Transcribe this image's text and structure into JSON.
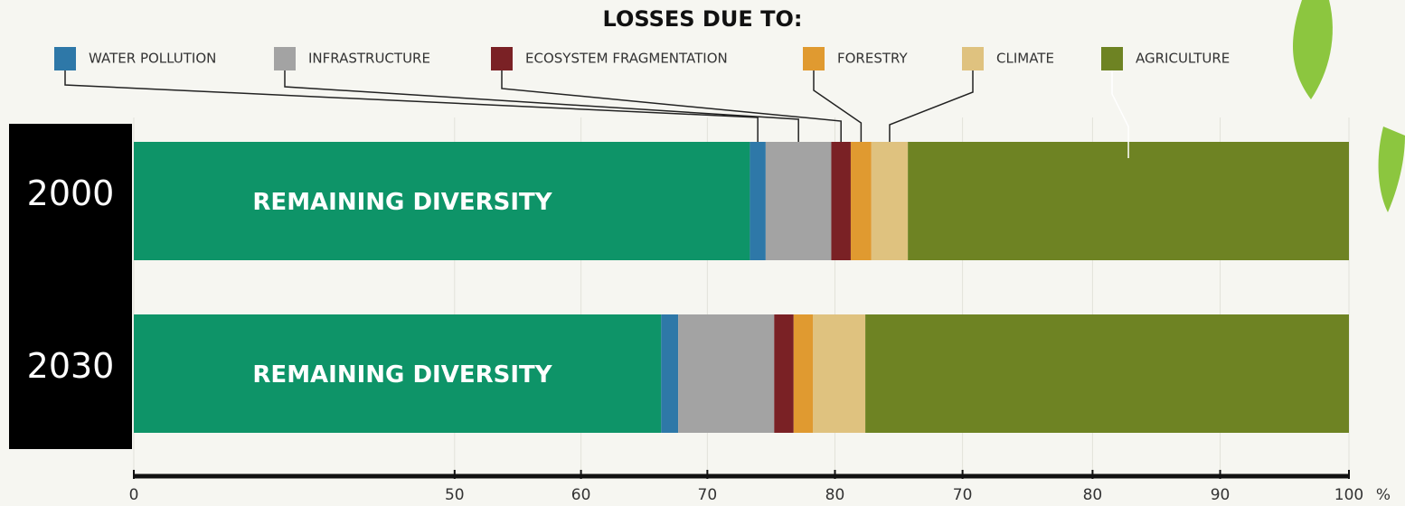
{
  "chart_data": {
    "type": "stacked-barh",
    "legend_title": "LOSSES DUE TO:",
    "categories": [
      "2000",
      "2030"
    ],
    "series": [
      {
        "name": "REMAINING DIVERSITY",
        "color": "#0e9468",
        "values": [
          50.7,
          43.4
        ]
      },
      {
        "name": "WATER POLLUTION",
        "color": "#2e78a8",
        "values": [
          1.3,
          1.4
        ]
      },
      {
        "name": "INFRASTRUCTURE",
        "color": "#a3a3a3",
        "values": [
          5.4,
          7.9
        ]
      },
      {
        "name": "ECOSYSTEM FRAGMENTATION",
        "color": "#7a2125",
        "values": [
          1.6,
          1.6
        ]
      },
      {
        "name": "FORESTRY",
        "color": "#e09a30",
        "values": [
          1.7,
          1.6
        ]
      },
      {
        "name": "CLIMATE",
        "color": "#dfc27f",
        "values": [
          3.0,
          4.3
        ]
      },
      {
        "name": "AGRICULTURE",
        "color": "#6e8323",
        "values": [
          36.3,
          39.8
        ]
      }
    ],
    "xlim": [
      0,
      100
    ],
    "xticks": [
      0,
      {
        "value": 26.4,
        "label": "50"
      },
      {
        "value": 36.8,
        "label": "60"
      },
      {
        "value": 47.2,
        "label": "70"
      },
      {
        "value": 57.7,
        "label": "80"
      },
      {
        "value": 68.2,
        "label": "70"
      },
      {
        "value": 78.9,
        "label": "80"
      },
      {
        "value": 89.4,
        "label": "90"
      },
      100
    ],
    "xlabel": "%",
    "grid": true
  }
}
